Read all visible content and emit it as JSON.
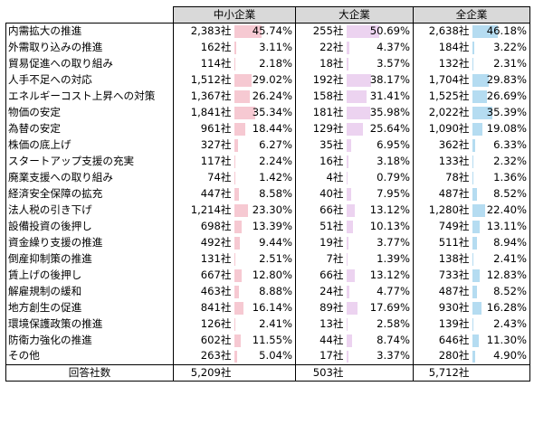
{
  "header": {
    "sme": "中小企業",
    "large": "大企業",
    "all": "全企業"
  },
  "rows": [
    {
      "label": "内需拡大の推進",
      "sme_count": "2,383社",
      "sme_pct": "45.74%",
      "large_count": "255社",
      "large_pct": "50.69%",
      "all_count": "2,638社",
      "all_pct": "46.18%"
    },
    {
      "label": "外需取り込みの推進",
      "sme_count": "162社",
      "sme_pct": "3.11%",
      "large_count": "22社",
      "large_pct": "4.37%",
      "all_count": "184社",
      "all_pct": "3.22%"
    },
    {
      "label": "貿易促進への取り組み",
      "sme_count": "114社",
      "sme_pct": "2.18%",
      "large_count": "18社",
      "large_pct": "3.57%",
      "all_count": "132社",
      "all_pct": "2.31%"
    },
    {
      "label": "人手不足への対応",
      "sme_count": "1,512社",
      "sme_pct": "29.02%",
      "large_count": "192社",
      "large_pct": "38.17%",
      "all_count": "1,704社",
      "all_pct": "29.83%"
    },
    {
      "label": "エネルギーコスト上昇への対策",
      "sme_count": "1,367社",
      "sme_pct": "26.24%",
      "large_count": "158社",
      "large_pct": "31.41%",
      "all_count": "1,525社",
      "all_pct": "26.69%"
    },
    {
      "label": "物価の安定",
      "sme_count": "1,841社",
      "sme_pct": "35.34%",
      "large_count": "181社",
      "large_pct": "35.98%",
      "all_count": "2,022社",
      "all_pct": "35.39%"
    },
    {
      "label": "為替の安定",
      "sme_count": "961社",
      "sme_pct": "18.44%",
      "large_count": "129社",
      "large_pct": "25.64%",
      "all_count": "1,090社",
      "all_pct": "19.08%"
    },
    {
      "label": "株価の底上げ",
      "sme_count": "327社",
      "sme_pct": "6.27%",
      "large_count": "35社",
      "large_pct": "6.95%",
      "all_count": "362社",
      "all_pct": "6.33%"
    },
    {
      "label": "スタートアップ支援の充実",
      "sme_count": "117社",
      "sme_pct": "2.24%",
      "large_count": "16社",
      "large_pct": "3.18%",
      "all_count": "133社",
      "all_pct": "2.32%"
    },
    {
      "label": "廃業支援への取り組み",
      "sme_count": "74社",
      "sme_pct": "1.42%",
      "large_count": "4社",
      "large_pct": "0.79%",
      "all_count": "78社",
      "all_pct": "1.36%"
    },
    {
      "label": "経済安全保障の拡充",
      "sme_count": "447社",
      "sme_pct": "8.58%",
      "large_count": "40社",
      "large_pct": "7.95%",
      "all_count": "487社",
      "all_pct": "8.52%"
    },
    {
      "label": "法人税の引き下げ",
      "sme_count": "1,214社",
      "sme_pct": "23.30%",
      "large_count": "66社",
      "large_pct": "13.12%",
      "all_count": "1,280社",
      "all_pct": "22.40%"
    },
    {
      "label": "設備投資の後押し",
      "sme_count": "698社",
      "sme_pct": "13.39%",
      "large_count": "51社",
      "large_pct": "10.13%",
      "all_count": "749社",
      "all_pct": "13.11%"
    },
    {
      "label": "資金繰り支援の推進",
      "sme_count": "492社",
      "sme_pct": "9.44%",
      "large_count": "19社",
      "large_pct": "3.77%",
      "all_count": "511社",
      "all_pct": "8.94%"
    },
    {
      "label": "倒産抑制策の推進",
      "sme_count": "131社",
      "sme_pct": "2.51%",
      "large_count": "7社",
      "large_pct": "1.39%",
      "all_count": "138社",
      "all_pct": "2.41%"
    },
    {
      "label": "賃上げの後押し",
      "sme_count": "667社",
      "sme_pct": "12.80%",
      "large_count": "66社",
      "large_pct": "13.12%",
      "all_count": "733社",
      "all_pct": "12.83%"
    },
    {
      "label": "解雇規制の緩和",
      "sme_count": "463社",
      "sme_pct": "8.88%",
      "large_count": "24社",
      "large_pct": "4.77%",
      "all_count": "487社",
      "all_pct": "8.52%"
    },
    {
      "label": "地方創生の促進",
      "sme_count": "841社",
      "sme_pct": "16.14%",
      "large_count": "89社",
      "large_pct": "17.69%",
      "all_count": "930社",
      "all_pct": "16.28%"
    },
    {
      "label": "環境保護政策の推進",
      "sme_count": "126社",
      "sme_pct": "2.41%",
      "large_count": "13社",
      "large_pct": "2.58%",
      "all_count": "139社",
      "all_pct": "2.43%"
    },
    {
      "label": "防衛力強化の推進",
      "sme_count": "602社",
      "sme_pct": "11.55%",
      "large_count": "44社",
      "large_pct": "8.74%",
      "all_count": "646社",
      "all_pct": "11.30%"
    },
    {
      "label": "その他",
      "sme_count": "263社",
      "sme_pct": "5.04%",
      "large_count": "17社",
      "large_pct": "3.37%",
      "all_count": "280社",
      "all_pct": "4.90%"
    }
  ],
  "footer": {
    "label": "回答社数",
    "sme_count": "5,209社",
    "large_count": "503社",
    "all_count": "5,712社"
  },
  "bar_colors": {
    "sme": "#f6c9d2",
    "large": "#ecd3f0",
    "all": "#b5dcf1"
  }
}
